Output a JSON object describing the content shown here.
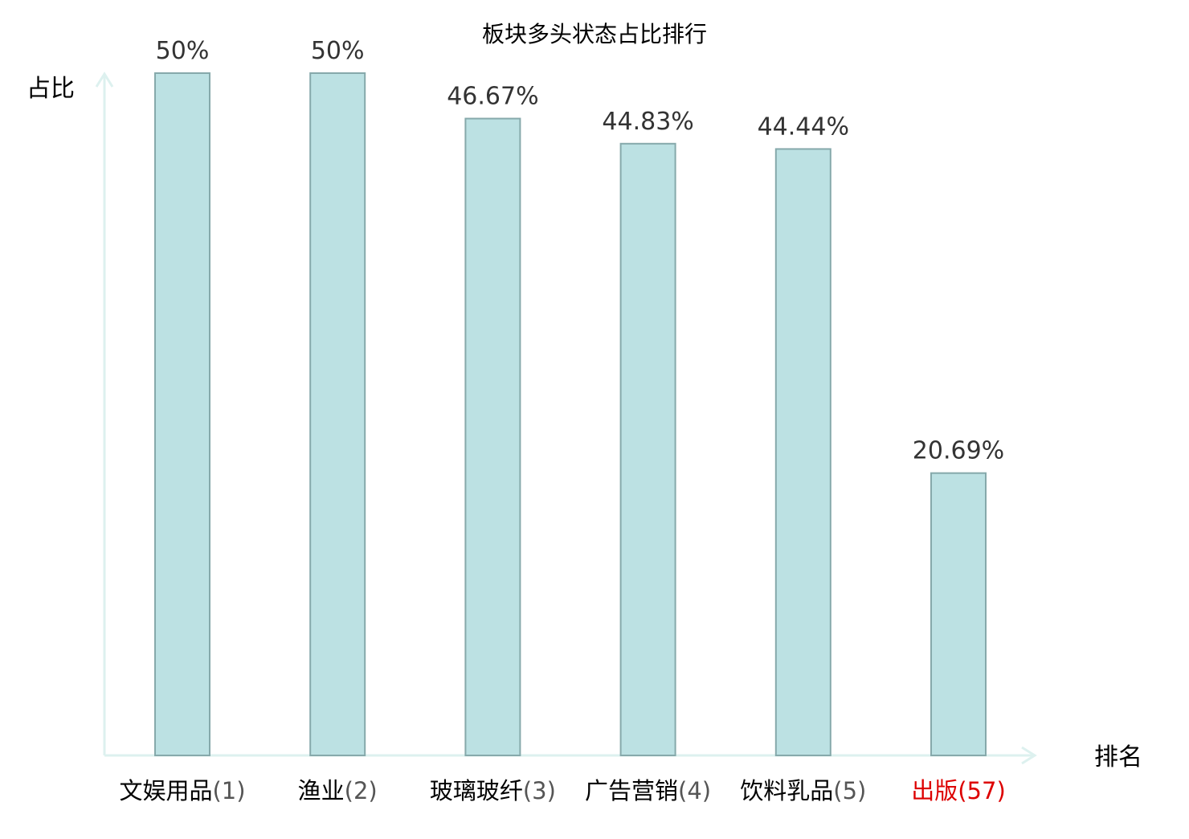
{
  "colors": {
    "bar_fill": "#bce1e3",
    "bar_stroke": "#86a9ab",
    "axis": "#ddf1ef",
    "text": "#000000",
    "value_label": "#333333",
    "rank_normal": "#555555",
    "highlight": "#dd0000"
  },
  "chart_data": {
    "type": "bar",
    "title": "板块多头状态占比排行",
    "ylabel": "占比",
    "xlabel": "排名",
    "ylim": [
      0,
      50
    ],
    "grid": false,
    "legend": "none",
    "categories": [
      {
        "name": "文娱用品",
        "rank": "(1)",
        "highlight": false
      },
      {
        "name": "渔业",
        "rank": "(2)",
        "highlight": false
      },
      {
        "name": "玻璃玻纤",
        "rank": "(3)",
        "highlight": false
      },
      {
        "name": "广告营销",
        "rank": "(4)",
        "highlight": false
      },
      {
        "name": "饮料乳品",
        "rank": "(5)",
        "highlight": false
      },
      {
        "name": "出版",
        "rank": "(57)",
        "highlight": true
      }
    ],
    "values": [
      50,
      50,
      46.67,
      44.83,
      44.44,
      20.69
    ],
    "value_labels": [
      "50%",
      "50%",
      "46.67%",
      "44.83%",
      "44.44%",
      "20.69%"
    ]
  }
}
